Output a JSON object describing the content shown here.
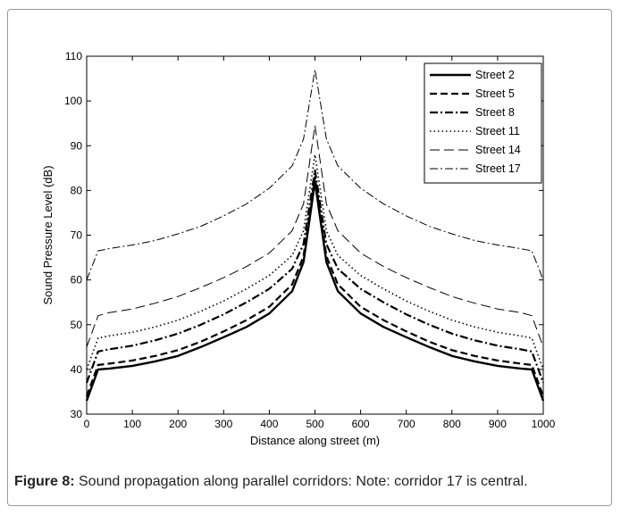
{
  "chart_data": {
    "type": "line",
    "xlabel": "Distance along street (m)",
    "ylabel": "Sound Pressure Level (dB)",
    "xlim": [
      0,
      1000
    ],
    "ylim": [
      30,
      110
    ],
    "xticks": [
      0,
      100,
      200,
      300,
      400,
      500,
      600,
      700,
      800,
      900,
      1000
    ],
    "yticks": [
      30,
      40,
      50,
      60,
      70,
      80,
      90,
      100,
      110
    ],
    "grid": false,
    "legend_position": "top-right",
    "x": [
      0,
      25,
      50,
      100,
      150,
      200,
      250,
      300,
      350,
      400,
      450,
      475,
      500,
      525,
      550,
      600,
      650,
      700,
      750,
      800,
      850,
      900,
      950,
      975,
      1000
    ],
    "series": [
      {
        "name": "Street 2",
        "style": "solid",
        "width": 2.4,
        "values": [
          33,
          40,
          40.2,
          40.8,
          41.8,
          43,
          45,
          47.2,
          49.5,
          52.5,
          57.5,
          64,
          82,
          64,
          57.5,
          52.5,
          49.5,
          47.2,
          45,
          43,
          41.8,
          40.8,
          40.2,
          40,
          33
        ]
      },
      {
        "name": "Street 5",
        "style": "dashed",
        "width": 2.2,
        "values": [
          34,
          41,
          41.3,
          42,
          43,
          44.3,
          46.2,
          48.5,
          51,
          54,
          59,
          65.3,
          83,
          65.3,
          59,
          54,
          51,
          48.5,
          46.2,
          44.3,
          43,
          42,
          41.3,
          41,
          34
        ]
      },
      {
        "name": "Street 8",
        "style": "dashdot",
        "width": 2.2,
        "values": [
          37,
          44,
          44.5,
          45.3,
          46.5,
          48,
          50,
          52.3,
          55,
          58,
          62.5,
          68,
          84.5,
          68,
          62.5,
          58,
          55,
          52.3,
          50,
          48,
          46.5,
          45.3,
          44.5,
          44,
          37
        ]
      },
      {
        "name": "Street 11",
        "style": "dotted",
        "width": 1.6,
        "values": [
          40,
          47,
          47.5,
          48.3,
          49.5,
          51,
          53,
          55.3,
          58,
          61,
          65.5,
          71,
          88,
          71,
          65.5,
          61,
          58,
          55.3,
          53,
          51,
          49.5,
          48.3,
          47.5,
          47,
          40
        ]
      },
      {
        "name": "Street 14",
        "style": "longdash",
        "width": 1.0,
        "values": [
          45,
          52,
          52.7,
          53.5,
          54.8,
          56.3,
          58.3,
          60.5,
          63,
          66,
          71,
          77,
          94.5,
          77,
          71,
          66,
          63,
          60.5,
          58.3,
          56.3,
          54.8,
          53.5,
          52.7,
          52,
          45
        ]
      },
      {
        "name": "Street 17",
        "style": "dashdot-thin",
        "width": 1.0,
        "values": [
          60,
          66.5,
          67,
          67.8,
          68.8,
          70.3,
          72,
          74.3,
          77,
          80.5,
          85.5,
          91.5,
          107,
          91.5,
          85.5,
          80.5,
          77,
          74.3,
          72,
          70.3,
          68.8,
          67.8,
          67,
          66.5,
          60
        ]
      }
    ]
  },
  "caption": {
    "label": "Figure 8:",
    "text": " Sound propagation along parallel corridors: Note: corridor 17 is central."
  }
}
